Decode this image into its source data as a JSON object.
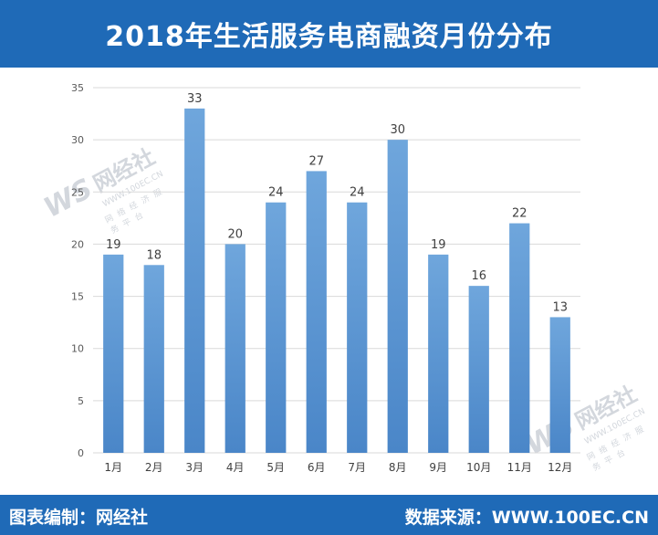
{
  "header": {
    "title": "2018年生活服务电商融资月份分布"
  },
  "footer": {
    "left": "图表编制：网经社",
    "right": "数据来源：WWW.100EC.CN"
  },
  "watermark": {
    "logo": "WS",
    "name": "网经社",
    "url": "WWW.100EC.CN",
    "subtitle": "网络经济服务平台"
  },
  "colors": {
    "header_bg": "#1f6ab7",
    "bar_top": "#6fa6dc",
    "bar_bottom": "#4a86c8",
    "grid": "#d9d9d9"
  },
  "chart_data": {
    "type": "bar",
    "categories": [
      "1月",
      "2月",
      "3月",
      "4月",
      "5月",
      "6月",
      "7月",
      "8月",
      "9月",
      "10月",
      "11月",
      "12月"
    ],
    "values": [
      19,
      18,
      33,
      20,
      24,
      27,
      24,
      30,
      19,
      16,
      22,
      13
    ],
    "title": "2018年生活服务电商融资月份分布",
    "xlabel": "",
    "ylabel": "",
    "ylim": [
      0,
      35
    ],
    "yticks": [
      0,
      5,
      10,
      15,
      20,
      25,
      30,
      35
    ],
    "grid": true,
    "legend": "none"
  }
}
